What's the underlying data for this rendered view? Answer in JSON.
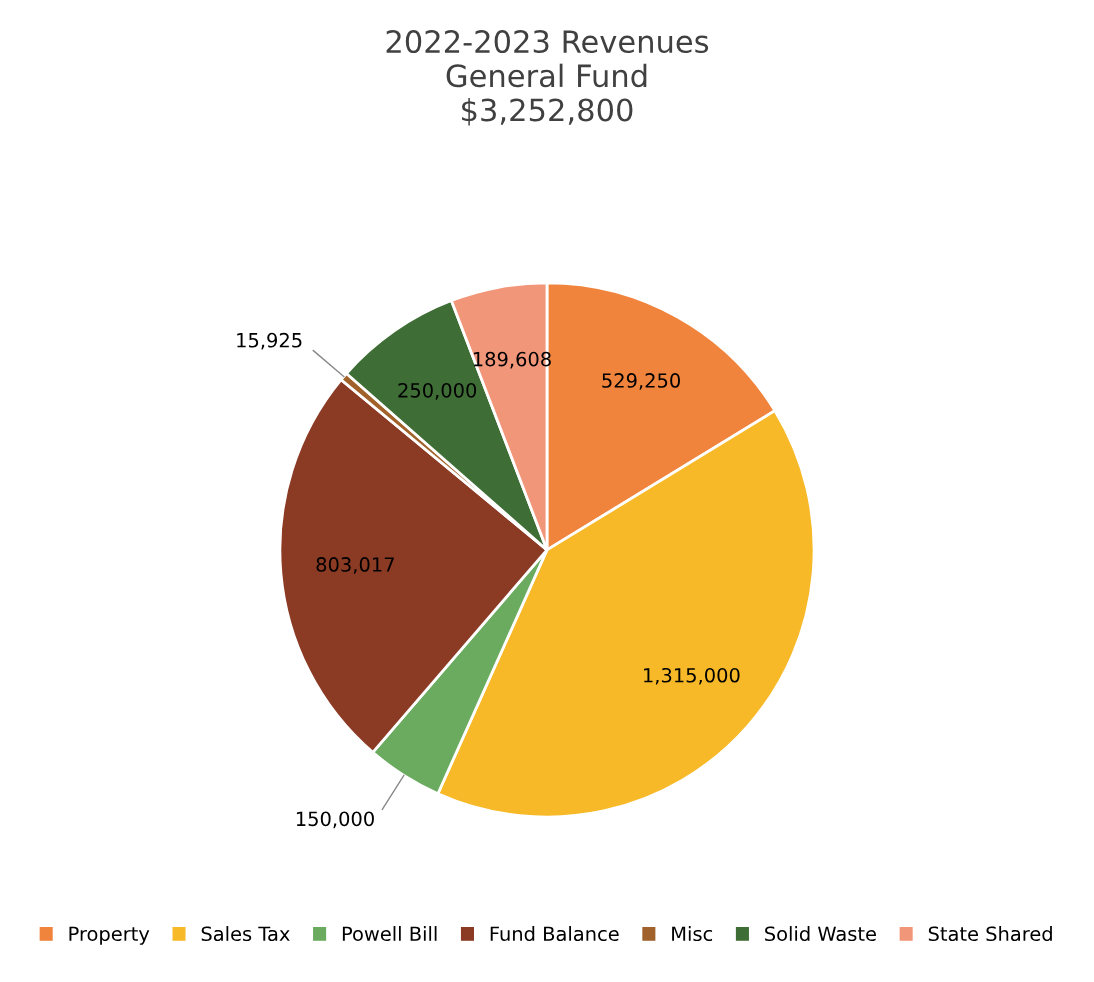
{
  "chart_data": {
    "type": "pie",
    "title": "2022-2023 Revenues\nGeneral Fund\n$3,252,800",
    "categories": [
      "Property",
      "Sales Tax",
      "Powell Bill",
      "Fund Balance",
      "Misc",
      "Solid Waste",
      "State Shared"
    ],
    "values": [
      529250,
      1315000,
      150000,
      803017,
      15925,
      250000,
      189608
    ],
    "value_labels": [
      "529,250",
      "1,315,000",
      "150,000",
      "803,017",
      "15,925",
      "250,000",
      "189,608"
    ],
    "colors": [
      "#f0843c",
      "#f7b928",
      "#6aab5f",
      "#8b3a24",
      "#a0622a",
      "#3e6e35",
      "#f2967a"
    ],
    "legend": "bottom"
  }
}
